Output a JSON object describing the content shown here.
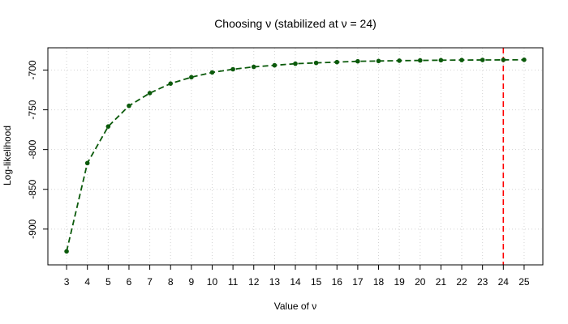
{
  "chart_data": {
    "type": "line",
    "title": "Choosing ν (stabilized at ν = 24)",
    "xlabel": "Value of ν",
    "ylabel": "Log-likelihood",
    "x": [
      3,
      4,
      5,
      6,
      7,
      8,
      9,
      10,
      11,
      12,
      13,
      14,
      15,
      16,
      17,
      18,
      19,
      20,
      21,
      22,
      23,
      24,
      25
    ],
    "x_ticks": [
      "3",
      "4",
      "5",
      "6",
      "7",
      "8",
      "9",
      "10",
      "11",
      "12",
      "13",
      "14",
      "15",
      "16",
      "17",
      "18",
      "19",
      "20",
      "21",
      "22",
      "23",
      "24",
      "25"
    ],
    "y": [
      -928,
      -817,
      -771,
      -745,
      -729,
      -717,
      -709,
      -703,
      -699,
      -696,
      -694,
      -692,
      -691,
      -690,
      -689,
      -688.6,
      -688.2,
      -687.9,
      -687.6,
      -687.4,
      -687.3,
      -687.2,
      -687.1
    ],
    "y_ticks": [
      -900,
      -850,
      -800,
      -750,
      -700
    ],
    "y_tick_labels": [
      "-900",
      "-850",
      "-800",
      "-750",
      "-700"
    ],
    "xlim": [
      2.1,
      25.9
    ],
    "ylim": [
      -945,
      -672
    ],
    "grid": true,
    "series_color": "#0b5a0b",
    "line_style": "dashed",
    "marker": "filled-circle",
    "vline": {
      "x": 24,
      "color": "#ff0000",
      "style": "dashed"
    }
  }
}
